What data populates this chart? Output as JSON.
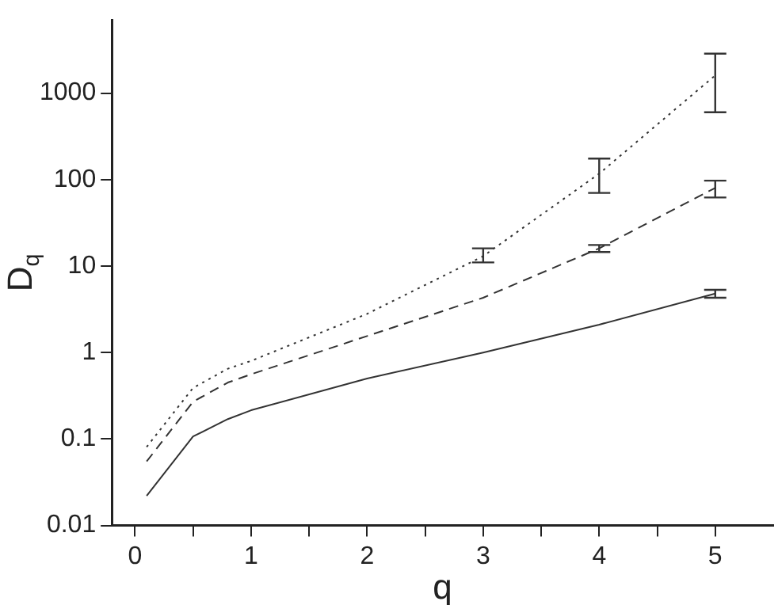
{
  "chart_data": {
    "type": "line",
    "xlabel": "q",
    "ylabel": "D$_{q}$",
    "log": "y",
    "grid": false,
    "legend": false,
    "marker": "none",
    "x": [
      0.1,
      0.5,
      0.8,
      1,
      2,
      3,
      4,
      5
    ],
    "xlim": [
      -0.2,
      5.5
    ],
    "xticks": [
      0,
      {
        "value": 0.5,
        "label": null
      },
      1,
      {
        "value": 1.5,
        "label": null
      },
      2,
      {
        "value": 2.5,
        "label": null
      },
      3,
      {
        "value": 3.5,
        "label": null
      },
      4,
      {
        "value": 4.5,
        "label": null
      },
      5
    ],
    "ylim": [
      0.01,
      7000
    ],
    "yticks": [
      0.01,
      0.1,
      1,
      10,
      100,
      1000
    ],
    "series": [
      {
        "color": "#333333",
        "line_style": "dotted",
        "values": [
          0.081,
          0.39,
          0.65,
          0.8,
          2.8,
          13,
          117,
          1600
        ],
        "errors": [
          null,
          null,
          null,
          null,
          null,
          [
            11,
            16
          ],
          [
            70,
            175
          ],
          [
            600,
            2850
          ]
        ]
      },
      {
        "color": "#333333",
        "line_style": "dashed",
        "values": [
          0.055,
          0.27,
          0.45,
          0.56,
          1.55,
          4.3,
          16,
          80
        ],
        "errors": [
          null,
          null,
          null,
          null,
          null,
          null,
          [
            14.5,
            17.5
          ],
          [
            62,
            97
          ]
        ]
      },
      {
        "color": "#333333",
        "line_style": "solid",
        "values": [
          0.022,
          0.107,
          0.17,
          0.215,
          0.5,
          1,
          2.1,
          4.8
        ],
        "errors": [
          null,
          null,
          null,
          null,
          null,
          null,
          null,
          [
            4.3,
            5.3
          ]
        ]
      }
    ]
  }
}
